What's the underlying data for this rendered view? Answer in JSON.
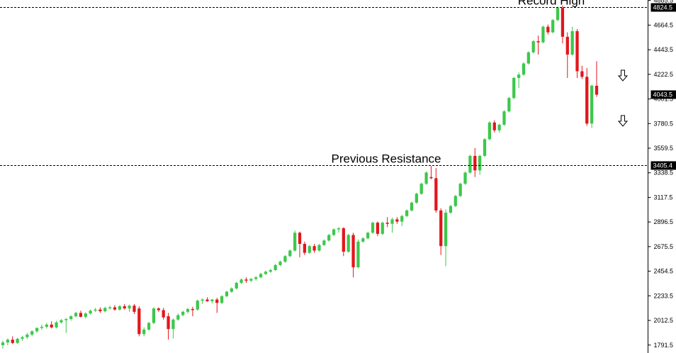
{
  "chart_data": {
    "type": "candlestick",
    "ylim": [
      1720,
      4890
    ],
    "grid": false,
    "colors": {
      "up": "#3cc84a",
      "down": "#e3161c",
      "axis": "#000000",
      "line": "#000000",
      "tag_bg": "#000000",
      "tag_text": "#ffffff"
    },
    "y_ticks": [
      "4885.5",
      "4664.5",
      "4443.5",
      "4222.5",
      "4001.5",
      "3780.5",
      "3559.5",
      "3338.5",
      "3117.5",
      "2896.5",
      "2675.5",
      "2454.5",
      "2233.5",
      "2012.5",
      "1791.5"
    ],
    "levels": [
      {
        "name": "record-high",
        "value": 4824.5,
        "label": "4824.5",
        "annotation": "Record High"
      },
      {
        "name": "previous-resistance",
        "value": 3405.4,
        "label": "3405.4",
        "annotation": "Previous Resistance"
      }
    ],
    "current_price": {
      "value": 4043.5,
      "label": "4043.5"
    },
    "arrows": [
      "down-arrow",
      "down-arrow"
    ],
    "candles": [
      {
        "o": 1790,
        "h": 1830,
        "l": 1760,
        "c": 1815
      },
      {
        "o": 1815,
        "h": 1850,
        "l": 1790,
        "c": 1840
      },
      {
        "o": 1840,
        "h": 1870,
        "l": 1800,
        "c": 1810
      },
      {
        "o": 1810,
        "h": 1855,
        "l": 1800,
        "c": 1848
      },
      {
        "o": 1848,
        "h": 1875,
        "l": 1830,
        "c": 1862
      },
      {
        "o": 1862,
        "h": 1900,
        "l": 1845,
        "c": 1885
      },
      {
        "o": 1885,
        "h": 1925,
        "l": 1870,
        "c": 1915
      },
      {
        "o": 1915,
        "h": 1950,
        "l": 1900,
        "c": 1945
      },
      {
        "o": 1945,
        "h": 1975,
        "l": 1930,
        "c": 1955
      },
      {
        "o": 1955,
        "h": 1990,
        "l": 1940,
        "c": 1975
      },
      {
        "o": 1975,
        "h": 2005,
        "l": 1940,
        "c": 1950
      },
      {
        "o": 1950,
        "h": 2010,
        "l": 1940,
        "c": 1995
      },
      {
        "o": 1995,
        "h": 2025,
        "l": 1985,
        "c": 2015
      },
      {
        "o": 2015,
        "h": 2035,
        "l": 1900,
        "c": 2025
      },
      {
        "o": 2025,
        "h": 2060,
        "l": 2010,
        "c": 2050
      },
      {
        "o": 2050,
        "h": 2090,
        "l": 2040,
        "c": 2080
      },
      {
        "o": 2080,
        "h": 2100,
        "l": 2040,
        "c": 2045
      },
      {
        "o": 2045,
        "h": 2085,
        "l": 2030,
        "c": 2075
      },
      {
        "o": 2075,
        "h": 2110,
        "l": 2065,
        "c": 2100
      },
      {
        "o": 2100,
        "h": 2125,
        "l": 2090,
        "c": 2110
      },
      {
        "o": 2110,
        "h": 2130,
        "l": 2080,
        "c": 2095
      },
      {
        "o": 2095,
        "h": 2135,
        "l": 2085,
        "c": 2125
      },
      {
        "o": 2125,
        "h": 2145,
        "l": 2110,
        "c": 2130
      },
      {
        "o": 2130,
        "h": 2150,
        "l": 2100,
        "c": 2110
      },
      {
        "o": 2110,
        "h": 2150,
        "l": 2100,
        "c": 2140
      },
      {
        "o": 2140,
        "h": 2160,
        "l": 2110,
        "c": 2120
      },
      {
        "o": 2120,
        "h": 2155,
        "l": 2090,
        "c": 2145
      },
      {
        "o": 2145,
        "h": 2160,
        "l": 2070,
        "c": 2090
      },
      {
        "o": 2120,
        "h": 2140,
        "l": 1870,
        "c": 1890
      },
      {
        "o": 1890,
        "h": 1950,
        "l": 1870,
        "c": 1930
      },
      {
        "o": 1930,
        "h": 2000,
        "l": 1920,
        "c": 1990
      },
      {
        "o": 1990,
        "h": 2130,
        "l": 1980,
        "c": 2120
      },
      {
        "o": 2120,
        "h": 2130,
        "l": 2090,
        "c": 2105
      },
      {
        "o": 2105,
        "h": 2125,
        "l": 2020,
        "c": 2040
      },
      {
        "o": 2050,
        "h": 2080,
        "l": 1840,
        "c": 1935
      },
      {
        "o": 1935,
        "h": 2030,
        "l": 1850,
        "c": 2020
      },
      {
        "o": 2020,
        "h": 2075,
        "l": 2010,
        "c": 2060
      },
      {
        "o": 2060,
        "h": 2100,
        "l": 2050,
        "c": 2090
      },
      {
        "o": 2090,
        "h": 2125,
        "l": 2075,
        "c": 2115
      },
      {
        "o": 2115,
        "h": 2135,
        "l": 2050,
        "c": 2110
      },
      {
        "o": 2110,
        "h": 2200,
        "l": 2100,
        "c": 2190
      },
      {
        "o": 2190,
        "h": 2210,
        "l": 2160,
        "c": 2200
      },
      {
        "o": 2200,
        "h": 2220,
        "l": 2180,
        "c": 2185
      },
      {
        "o": 2185,
        "h": 2205,
        "l": 2165,
        "c": 2200
      },
      {
        "o": 2200,
        "h": 2215,
        "l": 2080,
        "c": 2170
      },
      {
        "o": 2170,
        "h": 2240,
        "l": 2160,
        "c": 2230
      },
      {
        "o": 2230,
        "h": 2280,
        "l": 2220,
        "c": 2270
      },
      {
        "o": 2270,
        "h": 2310,
        "l": 2260,
        "c": 2300
      },
      {
        "o": 2300,
        "h": 2360,
        "l": 2290,
        "c": 2350
      },
      {
        "o": 2350,
        "h": 2390,
        "l": 2340,
        "c": 2380
      },
      {
        "o": 2380,
        "h": 2400,
        "l": 2350,
        "c": 2370
      },
      {
        "o": 2370,
        "h": 2395,
        "l": 2355,
        "c": 2385
      },
      {
        "o": 2385,
        "h": 2410,
        "l": 2370,
        "c": 2400
      },
      {
        "o": 2400,
        "h": 2440,
        "l": 2390,
        "c": 2430
      },
      {
        "o": 2430,
        "h": 2460,
        "l": 2420,
        "c": 2450
      },
      {
        "o": 2450,
        "h": 2475,
        "l": 2440,
        "c": 2465
      },
      {
        "o": 2465,
        "h": 2520,
        "l": 2455,
        "c": 2510
      },
      {
        "o": 2510,
        "h": 2550,
        "l": 2500,
        "c": 2540
      },
      {
        "o": 2540,
        "h": 2600,
        "l": 2530,
        "c": 2590
      },
      {
        "o": 2590,
        "h": 2650,
        "l": 2580,
        "c": 2640
      },
      {
        "o": 2640,
        "h": 2820,
        "l": 2630,
        "c": 2800
      },
      {
        "o": 2800,
        "h": 2810,
        "l": 2580,
        "c": 2700
      },
      {
        "o": 2700,
        "h": 2720,
        "l": 2600,
        "c": 2620
      },
      {
        "o": 2620,
        "h": 2690,
        "l": 2610,
        "c": 2680
      },
      {
        "o": 2680,
        "h": 2700,
        "l": 2620,
        "c": 2640
      },
      {
        "o": 2640,
        "h": 2700,
        "l": 2630,
        "c": 2690
      },
      {
        "o": 2690,
        "h": 2740,
        "l": 2680,
        "c": 2730
      },
      {
        "o": 2730,
        "h": 2790,
        "l": 2720,
        "c": 2780
      },
      {
        "o": 2780,
        "h": 2840,
        "l": 2770,
        "c": 2830
      },
      {
        "o": 2830,
        "h": 2850,
        "l": 2800,
        "c": 2840
      },
      {
        "o": 2840,
        "h": 2850,
        "l": 2590,
        "c": 2630
      },
      {
        "o": 2630,
        "h": 2790,
        "l": 2620,
        "c": 2780
      },
      {
        "o": 2780,
        "h": 2800,
        "l": 2400,
        "c": 2490
      },
      {
        "o": 2490,
        "h": 2740,
        "l": 2480,
        "c": 2720
      },
      {
        "o": 2720,
        "h": 2760,
        "l": 2710,
        "c": 2750
      },
      {
        "o": 2750,
        "h": 2810,
        "l": 2740,
        "c": 2800
      },
      {
        "o": 2800,
        "h": 2900,
        "l": 2790,
        "c": 2890
      },
      {
        "o": 2890,
        "h": 2900,
        "l": 2770,
        "c": 2790
      },
      {
        "o": 2790,
        "h": 2900,
        "l": 2780,
        "c": 2890
      },
      {
        "o": 2890,
        "h": 2940,
        "l": 2850,
        "c": 2880
      },
      {
        "o": 2880,
        "h": 2935,
        "l": 2800,
        "c": 2920
      },
      {
        "o": 2920,
        "h": 2940,
        "l": 2880,
        "c": 2900
      },
      {
        "o": 2900,
        "h": 2960,
        "l": 2860,
        "c": 2950
      },
      {
        "o": 2950,
        "h": 3010,
        "l": 2940,
        "c": 3000
      },
      {
        "o": 3000,
        "h": 3080,
        "l": 2990,
        "c": 3070
      },
      {
        "o": 3070,
        "h": 3160,
        "l": 3060,
        "c": 3150
      },
      {
        "o": 3150,
        "h": 3250,
        "l": 3140,
        "c": 3240
      },
      {
        "o": 3240,
        "h": 3350,
        "l": 3230,
        "c": 3340
      },
      {
        "o": 3300,
        "h": 3400,
        "l": 3280,
        "c": 3290
      },
      {
        "o": 3290,
        "h": 3380,
        "l": 2980,
        "c": 3000
      },
      {
        "o": 3000,
        "h": 3020,
        "l": 2600,
        "c": 2680
      },
      {
        "o": 2680,
        "h": 3010,
        "l": 2500,
        "c": 2980
      },
      {
        "o": 2980,
        "h": 3050,
        "l": 2970,
        "c": 3040
      },
      {
        "o": 3040,
        "h": 3140,
        "l": 3030,
        "c": 3130
      },
      {
        "o": 3130,
        "h": 3250,
        "l": 3120,
        "c": 3240
      },
      {
        "o": 3240,
        "h": 3350,
        "l": 3230,
        "c": 3340
      },
      {
        "o": 3340,
        "h": 3500,
        "l": 3330,
        "c": 3490
      },
      {
        "o": 3490,
        "h": 3560,
        "l": 3300,
        "c": 3360
      },
      {
        "o": 3360,
        "h": 3500,
        "l": 3320,
        "c": 3490
      },
      {
        "o": 3490,
        "h": 3650,
        "l": 3480,
        "c": 3640
      },
      {
        "o": 3640,
        "h": 3800,
        "l": 3630,
        "c": 3790
      },
      {
        "o": 3790,
        "h": 3810,
        "l": 3700,
        "c": 3720
      },
      {
        "o": 3720,
        "h": 3780,
        "l": 3700,
        "c": 3770
      },
      {
        "o": 3770,
        "h": 3900,
        "l": 3760,
        "c": 3890
      },
      {
        "o": 3890,
        "h": 4020,
        "l": 3880,
        "c": 4010
      },
      {
        "o": 4010,
        "h": 4200,
        "l": 4000,
        "c": 4190
      },
      {
        "o": 4190,
        "h": 4240,
        "l": 4100,
        "c": 4220
      },
      {
        "o": 4220,
        "h": 4330,
        "l": 4210,
        "c": 4320
      },
      {
        "o": 4320,
        "h": 4430,
        "l": 4310,
        "c": 4420
      },
      {
        "o": 4420,
        "h": 4530,
        "l": 4410,
        "c": 4520
      },
      {
        "o": 4520,
        "h": 4570,
        "l": 4400,
        "c": 4510
      },
      {
        "o": 4510,
        "h": 4660,
        "l": 4500,
        "c": 4650
      },
      {
        "o": 4650,
        "h": 4670,
        "l": 4580,
        "c": 4600
      },
      {
        "o": 4600,
        "h": 4720,
        "l": 4590,
        "c": 4710
      },
      {
        "o": 4710,
        "h": 4830,
        "l": 4700,
        "c": 4820
      },
      {
        "o": 4820,
        "h": 4840,
        "l": 4500,
        "c": 4560
      },
      {
        "o": 4560,
        "h": 4600,
        "l": 4190,
        "c": 4400
      },
      {
        "o": 4400,
        "h": 4650,
        "l": 4390,
        "c": 4610
      },
      {
        "o": 4610,
        "h": 4630,
        "l": 4190,
        "c": 4250
      },
      {
        "o": 4250,
        "h": 4300,
        "l": 4180,
        "c": 4200
      },
      {
        "o": 4200,
        "h": 4280,
        "l": 3760,
        "c": 3780
      },
      {
        "o": 3780,
        "h": 4130,
        "l": 3740,
        "c": 4120
      },
      {
        "o": 4120,
        "h": 4340,
        "l": 4020,
        "c": 4040
      }
    ]
  }
}
